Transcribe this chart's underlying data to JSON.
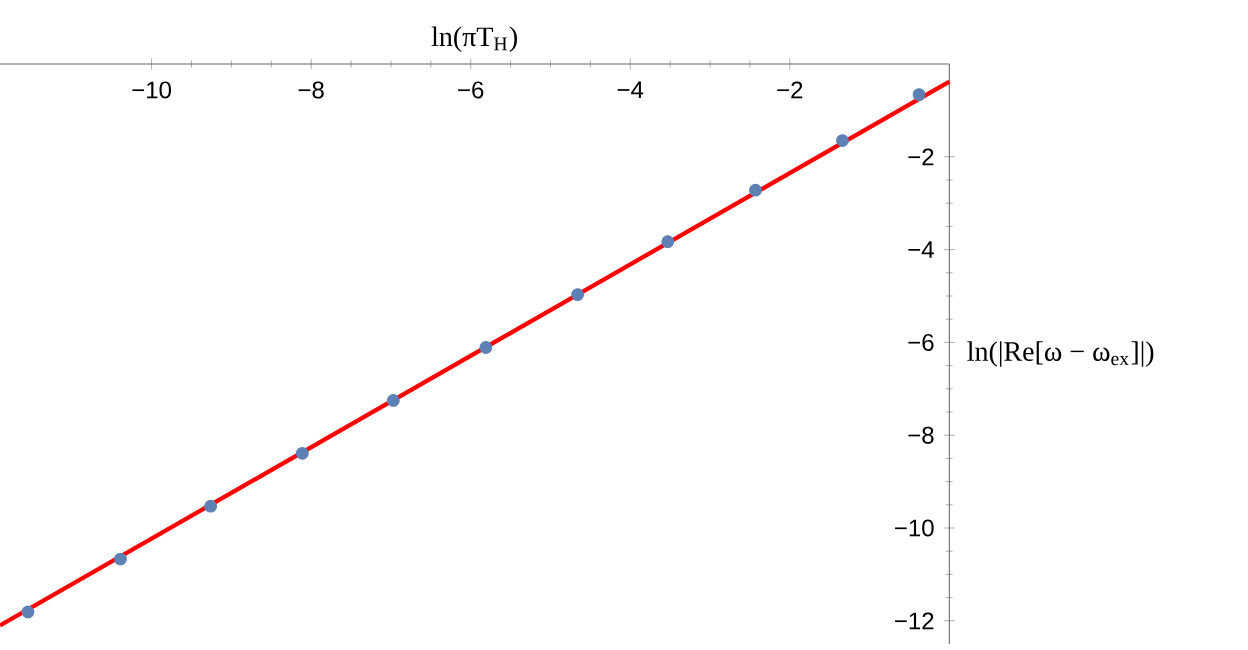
{
  "chart_data": {
    "type": "scatter",
    "xlabel": "ln(πT$_{H}$)",
    "ylabel": "ln(|Re[ω − ω$_{ex}$]|)",
    "xlim": [
      -11.9,
      0
    ],
    "ylim": [
      -12.5,
      0
    ],
    "xticks": [
      {
        "value": -10,
        "label": "−10"
      },
      {
        "value": -8,
        "label": "−8"
      },
      {
        "value": -6,
        "label": "−6"
      },
      {
        "value": -4,
        "label": "−4"
      },
      {
        "value": -2,
        "label": "−2"
      }
    ],
    "yticks": [
      {
        "value": -12,
        "label": "−12"
      },
      {
        "value": -10,
        "label": "−10"
      },
      {
        "value": -8,
        "label": "−8"
      },
      {
        "value": -6,
        "label": "−6"
      },
      {
        "value": -4,
        "label": "−4"
      },
      {
        "value": -2,
        "label": "−2"
      }
    ],
    "grid": false,
    "series": [
      {
        "color": "#5e81b5",
        "x": [
          -11.55,
          -10.39,
          -9.26,
          -8.11,
          -6.97,
          -5.81,
          -4.66,
          -3.53,
          -2.43,
          -1.34,
          -0.38
        ],
        "values": [
          -11.81,
          -10.67,
          -9.53,
          -8.39,
          -7.25,
          -6.11,
          -4.97,
          -3.83,
          -2.72,
          -1.65,
          -0.66
        ]
      },
      {
        "type": "line",
        "color": "#ff0000",
        "marker": "none",
        "line_style": "solid",
        "x": [
          -11.9,
          0
        ],
        "values": [
          -12.1,
          -0.38
        ]
      }
    ]
  }
}
